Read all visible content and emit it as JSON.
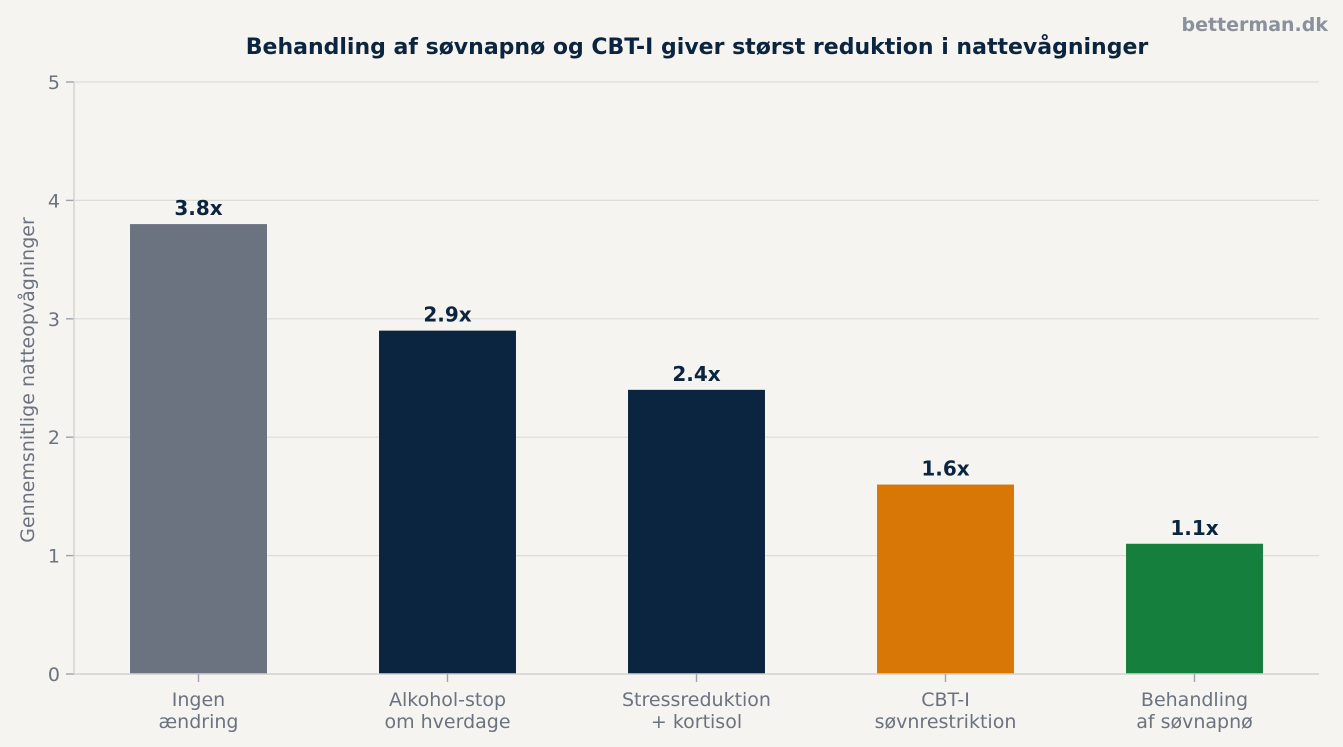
{
  "watermark": "betterman.dk",
  "chart_data": {
    "type": "bar",
    "title": "Behandling af søvnapnø og CBT-I giver størst reduktion i nattevågninger",
    "xlabel": "",
    "ylabel": "Gennemsnitlige natteopvågninger",
    "ylim": [
      0,
      5
    ],
    "yticks": [
      0,
      1,
      2,
      3,
      4,
      5
    ],
    "grid": true,
    "categories": [
      [
        "Ingen",
        "ændring"
      ],
      [
        "Alkohol-stop",
        "om hverdage"
      ],
      [
        "Stressreduktion",
        "+ kortisol"
      ],
      [
        "CBT-I",
        "søvnrestriktion"
      ],
      [
        "Behandling",
        "af søvnapnø"
      ]
    ],
    "values": [
      3.8,
      2.9,
      2.4,
      1.6,
      1.1
    ],
    "data_labels": [
      "3.8x",
      "2.9x",
      "2.4x",
      "1.6x",
      "1.1x"
    ],
    "colors": [
      "#6b7280",
      "#0b2540",
      "#0b2540",
      "#d97706",
      "#15803d"
    ]
  }
}
